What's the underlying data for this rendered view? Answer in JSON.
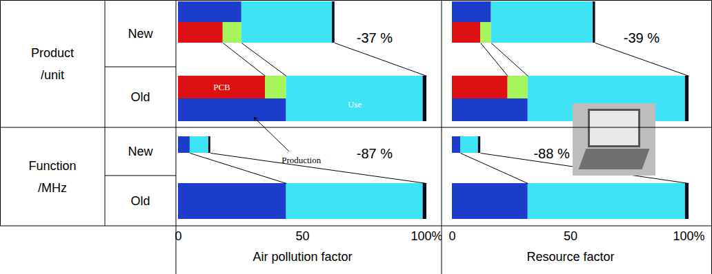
{
  "row_groups": [
    {
      "label_lines": [
        "Product",
        "/unit"
      ],
      "rows": [
        "New",
        "Old"
      ]
    },
    {
      "label_lines": [
        "Function",
        "/MHz"
      ],
      "rows": [
        "New",
        "Old"
      ]
    }
  ],
  "chart_data": [
    {
      "type": "bar",
      "orientation": "horizontal",
      "stacked": true,
      "tick_labels": "x",
      "xlabel": "Air pollution factor",
      "xlim": [
        0,
        100
      ],
      "xticks": [
        0,
        50,
        {
          "value": 100,
          "label": "100%"
        }
      ],
      "series": [
        {
          "name": "Production",
          "color": "#1c3ccc",
          "values": [
            25.5,
            43.5,
            4.7,
            43.5
          ],
          "breakdown": [
            {
              "name": "PCB",
              "color": "#dd1111",
              "values": [
                18,
                35,
                null,
                null
              ]
            },
            {
              "color": "#a6f55a",
              "values": [
                7.5,
                8.5,
                null,
                null
              ]
            }
          ]
        },
        {
          "name": "Use",
          "color": "#3fe3f6",
          "values": [
            36.5,
            55,
            7.5,
            55
          ]
        },
        {
          "color": "#0b0b1e",
          "values": [
            1,
            1.5,
            0.8,
            1.5
          ]
        }
      ],
      "annotations": [
        {
          "text": "-37 %",
          "row": 0
        },
        {
          "text": "-87 %",
          "row": 2
        }
      ]
    },
    {
      "type": "bar",
      "orientation": "horizontal",
      "stacked": true,
      "tick_labels": "x",
      "xlabel": "Resource factor",
      "xlim": [
        0,
        100
      ],
      "xticks": [
        0,
        50,
        {
          "value": 100,
          "label": "100%"
        }
      ],
      "series": [
        {
          "color": "#1c3ccc",
          "values": [
            16.5,
            32,
            3.5,
            32
          ],
          "breakdown": [
            {
              "color": "#dd1111",
              "values": [
                12,
                23.5,
                null,
                null
              ]
            },
            {
              "color": "#a6f55a",
              "values": [
                4.5,
                8.5,
                null,
                null
              ]
            }
          ]
        },
        {
          "color": "#3fe3f6",
          "values": [
            43,
            66.5,
            7.5,
            66.5
          ]
        },
        {
          "color": "#0b0b1e",
          "values": [
            1,
            1.5,
            1,
            1.5
          ]
        }
      ],
      "annotations": [
        {
          "text": "-39 %",
          "row": 0
        },
        {
          "text": "-88 %",
          "row": 2
        }
      ]
    }
  ]
}
